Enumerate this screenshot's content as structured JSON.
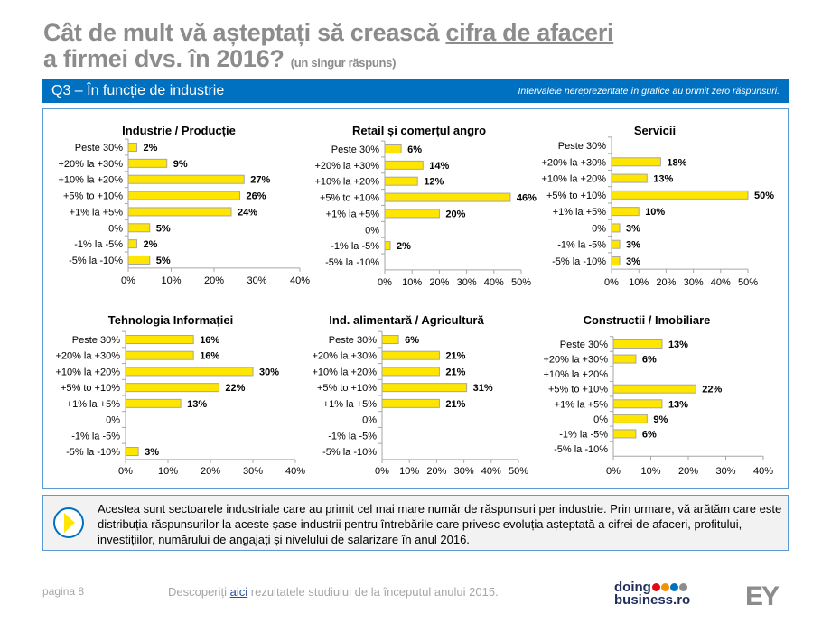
{
  "header": {
    "title_line1_pre": "Cât de mult vă așteptați să crească ",
    "title_line1_underlined": "cifra de afaceri",
    "title_line2": "a firmei dvs. în 2016?",
    "title_note": "(un singur răspuns)"
  },
  "section": {
    "label": "Q3 – În funcție de industrie",
    "note": "Intervalele nereprezentate în grafice au primit zero răspunsuri."
  },
  "colors": {
    "bar": "#FFE600",
    "bar_border": "#a6a6a6",
    "blue": "#0070c0",
    "title_gray": "#8c8c8c"
  },
  "chart_data": [
    {
      "type": "bar",
      "orientation": "horizontal",
      "title": "Industrie / Producție",
      "categories": [
        "Peste 30%",
        "+20% la +30%",
        "+10% la +20%",
        "+5% to +10%",
        "+1% la +5%",
        "0%",
        "-1% la -5%",
        "-5% la -10%"
      ],
      "values": [
        2,
        9,
        27,
        26,
        24,
        5,
        2,
        5
      ],
      "xlim": [
        0,
        40
      ],
      "xticks": [
        "0%",
        "10%",
        "20%",
        "30%",
        "40%"
      ]
    },
    {
      "type": "bar",
      "orientation": "horizontal",
      "title": "Retail și comerțul angro",
      "categories": [
        "Peste 30%",
        "+20% la +30%",
        "+10% la +20%",
        "+5% to +10%",
        "+1% la +5%",
        "0%",
        "-1% la -5%",
        "-5% la -10%"
      ],
      "values": [
        6,
        14,
        12,
        46,
        20,
        0,
        2,
        0
      ],
      "xlim": [
        0,
        50
      ],
      "xticks": [
        "0%",
        "10%",
        "20%",
        "30%",
        "40%",
        "50%"
      ]
    },
    {
      "type": "bar",
      "orientation": "horizontal",
      "title": "Servicii",
      "categories": [
        "Peste 30%",
        "+20% la +30%",
        "+10% la +20%",
        "+5% to +10%",
        "+1% la +5%",
        "0%",
        "-1% la -5%",
        "-5% la -10%"
      ],
      "values": [
        0,
        18,
        13,
        50,
        10,
        3,
        3,
        3
      ],
      "xlim": [
        0,
        50
      ],
      "xticks": [
        "0%",
        "10%",
        "20%",
        "30%",
        "40%",
        "50%"
      ]
    },
    {
      "type": "bar",
      "orientation": "horizontal",
      "title": "Tehnologia Informației",
      "categories": [
        "Peste 30%",
        "+20% la +30%",
        "+10% la +20%",
        "+5% to +10%",
        "+1% la +5%",
        "0%",
        "-1% la -5%",
        "-5% la -10%"
      ],
      "values": [
        16,
        16,
        30,
        22,
        13,
        0,
        0,
        3
      ],
      "xlim": [
        0,
        40
      ],
      "xticks": [
        "0%",
        "10%",
        "20%",
        "30%",
        "40%"
      ]
    },
    {
      "type": "bar",
      "orientation": "horizontal",
      "title": "Ind. alimentară / Agricultură",
      "categories": [
        "Peste 30%",
        "+20% la +30%",
        "+10% la +20%",
        "+5% to +10%",
        "+1% la +5%",
        "0%",
        "-1% la -5%",
        "-5% la -10%"
      ],
      "values": [
        6,
        21,
        21,
        31,
        21,
        0,
        0,
        0
      ],
      "xlim": [
        0,
        50
      ],
      "xticks": [
        "0%",
        "10%",
        "20%",
        "30%",
        "40%",
        "50%"
      ]
    },
    {
      "type": "bar",
      "orientation": "horizontal",
      "title": "Constructii / Imobiliare",
      "categories": [
        "Peste 30%",
        "+20% la +30%",
        "+10% la +20%",
        "+5% to +10%",
        "+1% la +5%",
        "0%",
        "-1% la -5%",
        "-5% la -10%"
      ],
      "values": [
        13,
        6,
        0,
        22,
        13,
        9,
        6,
        0
      ],
      "xlim": [
        0,
        40
      ],
      "xticks": [
        "0%",
        "10%",
        "20%",
        "30%",
        "40%"
      ]
    }
  ],
  "info": {
    "text": "Acestea sunt sectoarele industriale care au primit cel mai mare număr de răspunsuri per industrie. Prin urmare, vă arătăm care este distribuția răspunsurilor la aceste șase industrii pentru întrebările care privesc evoluția așteptată a cifrei de afaceri, profitului, investițiilor, numărului de angajați și nivelului de salarizare în anul 2016."
  },
  "footer": {
    "page": "pagina 8",
    "link_pre": "Descoperiți ",
    "link": "aici",
    "link_post": " rezultatele studiului de la începutul anului 2015.",
    "logo_doing": "doing",
    "logo_business": "business.ro",
    "logo_ey": "EY"
  }
}
